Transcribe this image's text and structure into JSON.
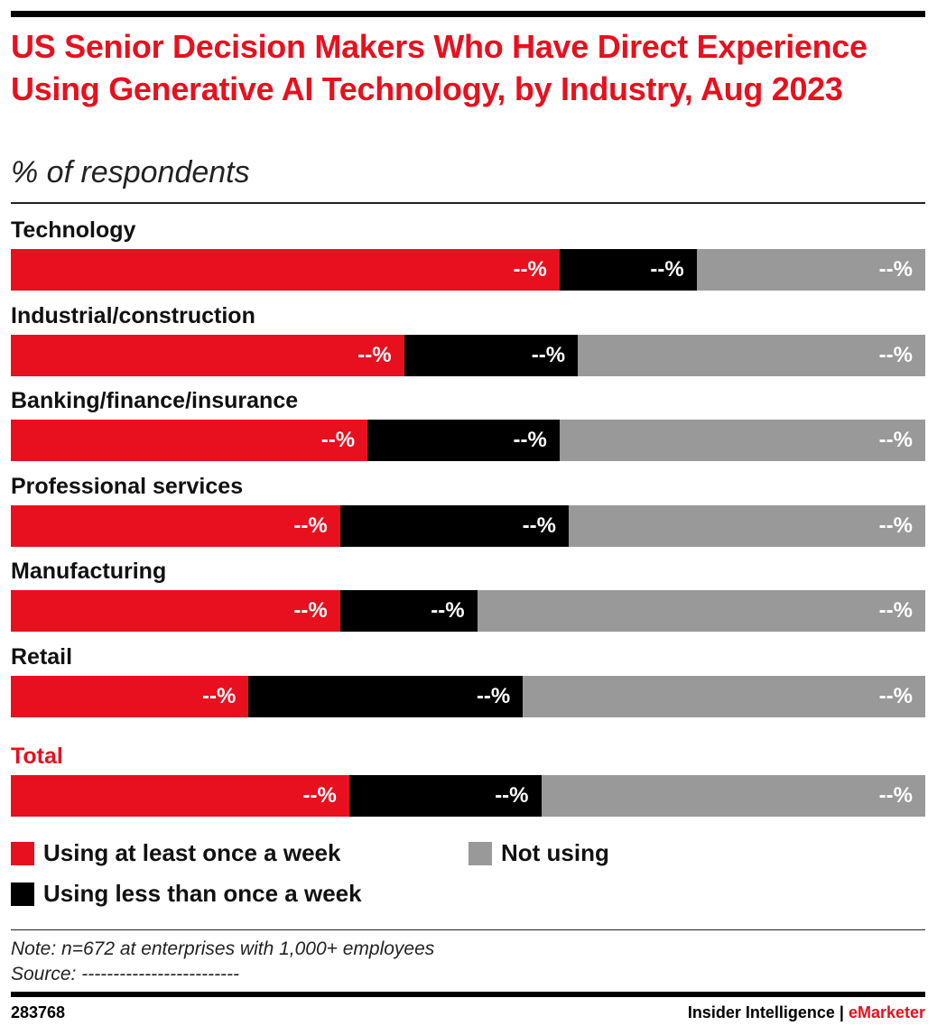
{
  "title": "US Senior Decision Makers Who Have Direct Experience Using Generative AI Technology, by Industry, Aug 2023",
  "subtitle": "% of respondents",
  "colors": {
    "weekly": "#e8101e",
    "less": "#000000",
    "not": "#999999",
    "title": "#e8101e"
  },
  "chart_data": {
    "type": "bar",
    "orientation": "horizontal",
    "stacked": "100%",
    "categories": [
      "Technology",
      "Industrial/construction",
      "Banking/finance/insurance",
      "Professional services",
      "Manufacturing",
      "Retail",
      "Total"
    ],
    "series": [
      {
        "name": "Using at least once a week",
        "values": [
          60,
          43,
          39,
          36,
          36,
          26,
          37
        ],
        "labels": [
          "--%",
          "--%",
          "--%",
          "--%",
          "--%",
          "--%",
          "--%"
        ]
      },
      {
        "name": "Using less than once a week",
        "values": [
          15,
          19,
          21,
          25,
          15,
          30,
          21
        ],
        "labels": [
          "--%",
          "--%",
          "--%",
          "--%",
          "--%",
          "--%",
          "--%"
        ]
      },
      {
        "name": "Not using",
        "values": [
          25,
          38,
          40,
          39,
          49,
          44,
          42
        ],
        "labels": [
          "--%",
          "--%",
          "--%",
          "--%",
          "--%",
          "--%",
          "--%"
        ]
      }
    ],
    "legend": "bottom",
    "grid": false
  },
  "note": "Note: n=672 at enterprises with 1,000+ employees",
  "source": "Source: -------------------------",
  "footer": {
    "id": "283768",
    "brand_left": "Insider Intelligence",
    "separator": "|",
    "brand_right": "eMarketer"
  }
}
